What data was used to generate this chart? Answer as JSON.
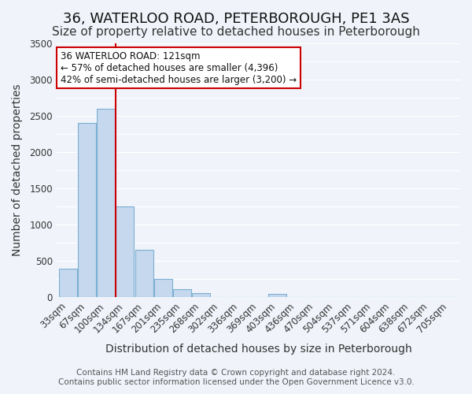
{
  "title": "36, WATERLOO ROAD, PETERBOROUGH, PE1 3AS",
  "subtitle": "Size of property relative to detached houses in Peterborough",
  "xlabel": "Distribution of detached houses by size in Peterborough",
  "ylabel": "Number of detached properties",
  "bar_labels": [
    "33sqm",
    "67sqm",
    "100sqm",
    "134sqm",
    "167sqm",
    "201sqm",
    "235sqm",
    "268sqm",
    "302sqm",
    "336sqm",
    "369sqm",
    "403sqm",
    "436sqm",
    "470sqm",
    "504sqm",
    "537sqm",
    "571sqm",
    "604sqm",
    "638sqm",
    "672sqm",
    "705sqm"
  ],
  "bar_values": [
    390,
    2400,
    2600,
    1250,
    650,
    250,
    110,
    55,
    0,
    0,
    0,
    50,
    0,
    0,
    0,
    0,
    0,
    0,
    0,
    0,
    0
  ],
  "bar_color": "#c5d8ed",
  "bar_edgecolor": "#7bafd4",
  "vline_x": 3.0,
  "vline_color": "#cc0000",
  "ylim": [
    0,
    3500
  ],
  "yticks": [
    0,
    500,
    1000,
    1500,
    2000,
    2500,
    3000,
    3500
  ],
  "annotation_title": "36 WATERLOO ROAD: 121sqm",
  "annotation_line1": "← 57% of detached houses are smaller (4,396)",
  "annotation_line2": "42% of semi-detached houses are larger (3,200) →",
  "annotation_box_color": "#ffffff",
  "annotation_box_edgecolor": "#cc0000",
  "footer_line1": "Contains HM Land Registry data © Crown copyright and database right 2024.",
  "footer_line2": "Contains public sector information licensed under the Open Government Licence v3.0.",
  "background_color": "#f0f4fa",
  "grid_color": "#ffffff",
  "title_fontsize": 13,
  "subtitle_fontsize": 11,
  "axis_label_fontsize": 10,
  "tick_fontsize": 8.5,
  "footer_fontsize": 7.5
}
